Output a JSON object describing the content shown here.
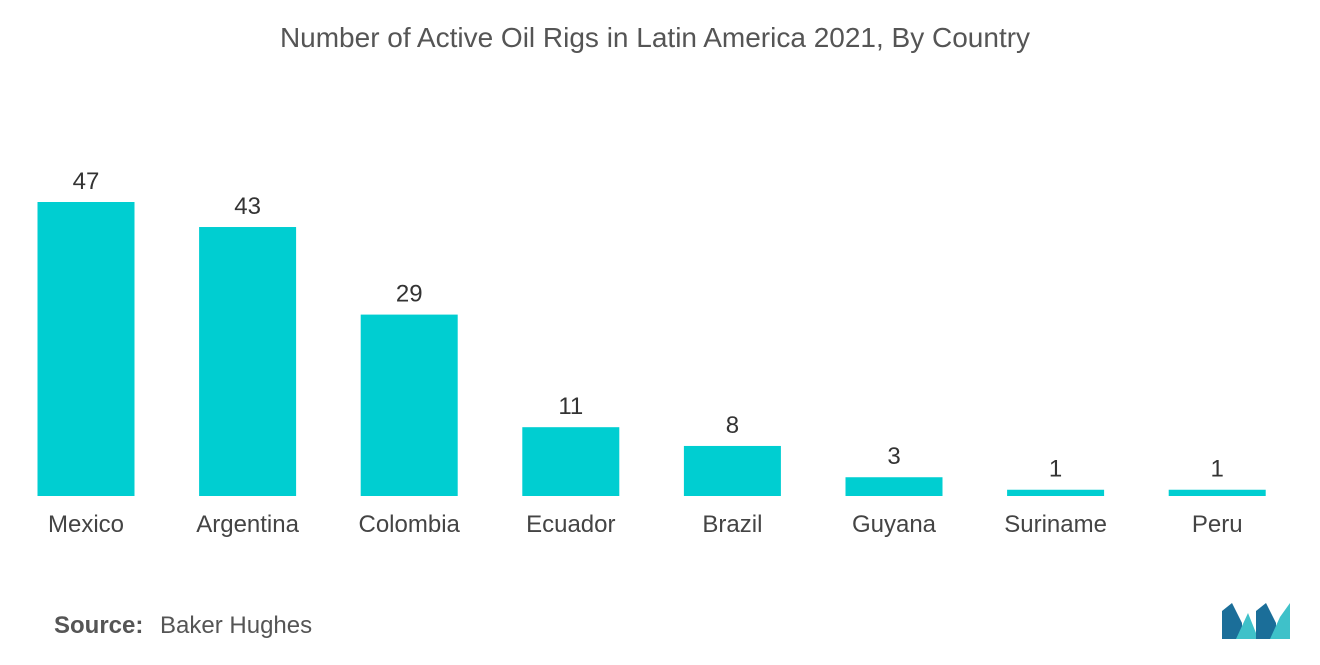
{
  "chart_data": {
    "type": "bar",
    "title": "Number of Active Oil Rigs in Latin America 2021, By Country",
    "categories": [
      "Mexico",
      "Argentina",
      "Colombia",
      "Ecuador",
      "Brazil",
      "Guyana",
      "Suriname",
      "Peru"
    ],
    "values": [
      47,
      43,
      29,
      11,
      8,
      3,
      1,
      1
    ],
    "xlabel": "",
    "ylabel": "",
    "ylim": [
      0,
      47
    ],
    "grid": false,
    "bar_color": "#00CED1",
    "data_labels": true
  },
  "source": {
    "label": "Source:",
    "text": "Baker Hughes"
  },
  "logo": {
    "icon": "mordor-intelligence-logo-icon",
    "colors": [
      "#1B6E99",
      "#3FC1C9"
    ]
  }
}
